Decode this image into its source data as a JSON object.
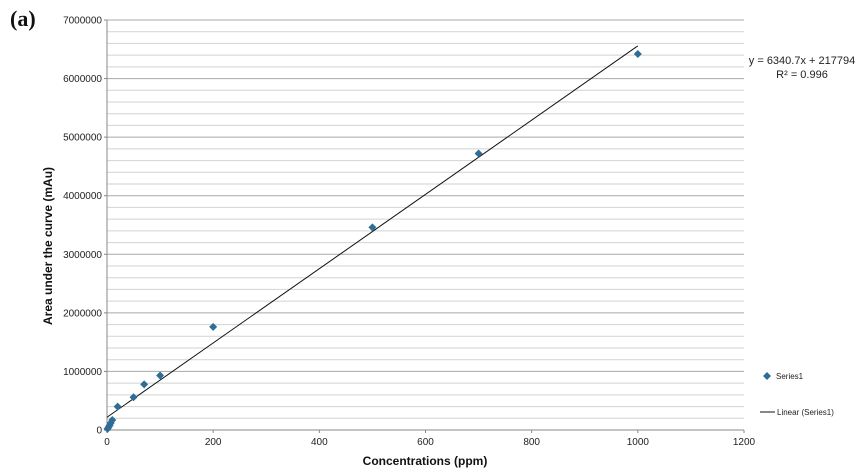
{
  "panel_label": "(a)",
  "chart_data": {
    "type": "scatter",
    "xlabel": "Concentrations (ppm)",
    "ylabel": "Area under the curve (mAu)",
    "xlim": [
      0,
      1200
    ],
    "ylim": [
      0,
      7000000
    ],
    "x_ticks": [
      0,
      200,
      400,
      600,
      800,
      1000,
      1200
    ],
    "y_ticks": [
      0,
      1000000,
      2000000,
      3000000,
      4000000,
      5000000,
      6000000,
      7000000
    ],
    "y_minor_step": 200000,
    "grid": "horizontal",
    "legend_position": "right",
    "series": [
      {
        "name": "Series1",
        "marker": "diamond",
        "color": "#2e6e96",
        "x": [
          1,
          3,
          5,
          7,
          10,
          20,
          50,
          70,
          100,
          200,
          500,
          700,
          1000
        ],
        "y": [
          20000,
          50000,
          80000,
          120000,
          170000,
          400000,
          560000,
          780000,
          930000,
          1760000,
          3460000,
          4720000,
          6420000
        ]
      }
    ],
    "trendline": {
      "name": "Linear (Series1)",
      "type": "linear",
      "slope": 6340.7,
      "intercept": 217794,
      "x_range": [
        0,
        1000
      ],
      "color": "#111111",
      "equation_text": "y = 6340.7x + 217794",
      "r2_text": "R² = 0.996"
    }
  }
}
